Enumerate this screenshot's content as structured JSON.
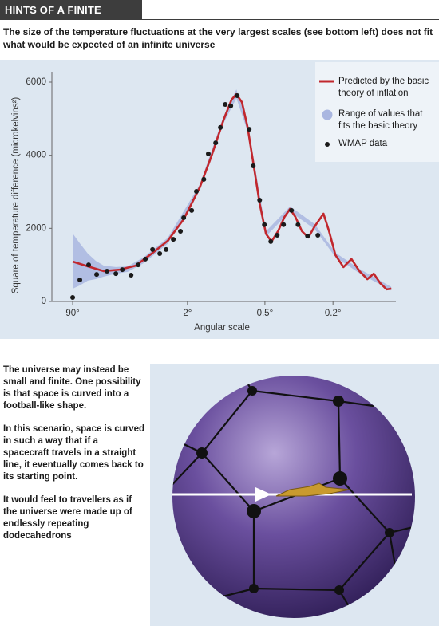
{
  "header": {
    "title": "HINTS OF A FINITE UNIVERSE"
  },
  "subtitle": "The size of the temperature fluctuations at the very largest scales (see bottom left) does not fit what would be expected of an infinite universe",
  "chart_data": {
    "type": "line",
    "xlabel": "Angular scale",
    "ylabel": "Square of temperature difference (microkelvins²)",
    "xlim": [
      350,
      0.1
    ],
    "xticks": [
      {
        "value": 90,
        "label": "90°"
      },
      {
        "value": 2,
        "label": "2°"
      },
      {
        "value": 0.5,
        "label": "0.5°"
      },
      {
        "value": 0.2,
        "label": "0.2°"
      }
    ],
    "ylim": [
      0,
      6000
    ],
    "yticks": [
      0,
      2000,
      4000,
      6000
    ],
    "legend": "upper right",
    "series": [
      {
        "name": "Predicted by the basic theory of inflation",
        "color": "#c1272d",
        "x": [
          90,
          42.0,
          21.5,
          12.1,
          7.3,
          4.67,
          3.12,
          2.17,
          1.55,
          1.23,
          0.986,
          0.857,
          0.789,
          0.719,
          0.655,
          0.592,
          0.542,
          0.492,
          0.453,
          0.412,
          0.376,
          0.348,
          0.323,
          0.296,
          0.272,
          0.251,
          0.2246,
          0.2097,
          0.1942,
          0.1767,
          0.1611,
          0.1473,
          0.1349,
          0.1259,
          0.1176,
          0.11,
          0.1047
        ],
        "values": [
          1090,
          960,
          830,
          870,
          980,
          1310,
          1660,
          2250,
          3120,
          3990,
          4970,
          5520,
          5670,
          5450,
          4760,
          3670,
          2680,
          1850,
          1640,
          1920,
          2310,
          2530,
          2310,
          1920,
          1750,
          2050,
          2400,
          1920,
          1270,
          940,
          1160,
          830,
          610,
          760,
          500,
          330,
          350
        ]
      },
      {
        "name": "Range of values that fits the basic theory",
        "color": "#a9b6e0",
        "x": [
          90,
          61.6,
          42.0,
          29.6,
          21.5,
          13.8,
          9.3,
          5.8,
          3.12,
          1.55,
          0.986,
          0.789,
          0.655,
          0.492,
          0.348,
          0.251,
          0.194,
          0.147,
          0.105
        ],
        "lower": [
          350,
          440,
          570,
          610,
          680,
          760,
          810,
          1050,
          1580,
          3040,
          4880,
          5560,
          4650,
          1780,
          2460,
          1980,
          1210,
          770,
          300
        ],
        "upper": [
          1860,
          1590,
          1310,
          1110,
          980,
          940,
          960,
          1210,
          1740,
          3200,
          5070,
          5800,
          4870,
          1920,
          2600,
          2120,
          1330,
          890,
          400
        ]
      },
      {
        "name": "WMAP data",
        "color": "#1a1a1a",
        "x": [
          90,
          61.6,
          40.5,
          28.6,
          19.0,
          13.8,
          11.1,
          8.4,
          6.8,
          5.55,
          4.57,
          3.8,
          3.25,
          2.74,
          2.33,
          2.17,
          1.83,
          1.66,
          1.43,
          1.31,
          1.14,
          1.045,
          0.958,
          0.869,
          0.778,
          0.639,
          0.599,
          0.542,
          0.504,
          0.458,
          0.417,
          0.381,
          0.341,
          0.312,
          0.275,
          0.241
        ],
        "values": [
          110,
          590,
          1000,
          740,
          830,
          760,
          870,
          720,
          1000,
          1160,
          1420,
          1310,
          1420,
          1700,
          1920,
          2290,
          2490,
          3010,
          3340,
          4040,
          4340,
          4760,
          5390,
          5350,
          5630,
          4710,
          3710,
          2770,
          2100,
          1640,
          1810,
          2100,
          2490,
          2100,
          1790,
          1810
        ]
      }
    ]
  },
  "body": {
    "paragraphs": [
      "The universe may instead be small and finite. One possibility is that space is curved into a football-like shape.",
      "In this scenario, space is curved in such a way that if a spacecraft travels in a straight line, it eventually comes back to its starting point.",
      "It would feel to travellers as if the universe were made up of endlessly repeating dodecahedrons"
    ]
  }
}
